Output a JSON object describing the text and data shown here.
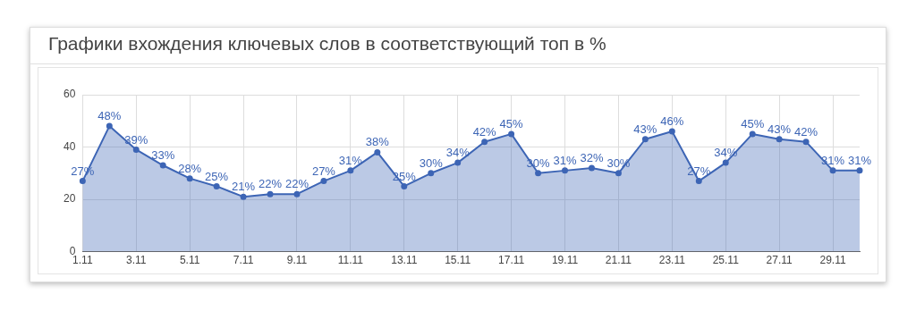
{
  "chart_data": {
    "type": "area",
    "title": "Графики вхождения ключевых слов в соответствующий топ в %",
    "categories": [
      "1.11",
      null,
      "3.11",
      null,
      "5.11",
      null,
      "7.11",
      null,
      "9.11",
      null,
      "11.11",
      null,
      "13.11",
      null,
      "15.11",
      null,
      "17.11",
      null,
      "19.11",
      null,
      "21.11",
      null,
      "23.11",
      null,
      "25.11",
      null,
      "27.11",
      null,
      "29.11",
      null
    ],
    "values": [
      27,
      48,
      39,
      33,
      28,
      25,
      21,
      22,
      22,
      27,
      31,
      38,
      25,
      30,
      34,
      42,
      45,
      30,
      31,
      32,
      30,
      43,
      46,
      27,
      34,
      45,
      43,
      42,
      31,
      31
    ],
    "value_labels": [
      "27%",
      "48%",
      "39%",
      "33%",
      "28%",
      "25%",
      "21%",
      "22%",
      "22%",
      "27%",
      "31%",
      "38%",
      "25%",
      "30%",
      "34%",
      "42%",
      "45%",
      "30%",
      "31%",
      "32%",
      "30%",
      "43%",
      "46%",
      "27%",
      "34%",
      "45%",
      "43%",
      "42%",
      "31%",
      "31%"
    ],
    "color": "#3d65b5",
    "ylim": [
      0,
      60
    ],
    "yticks": [
      0,
      20,
      40,
      60
    ],
    "grid": true,
    "legend": false,
    "marker": "circle",
    "line_style": "solid"
  }
}
